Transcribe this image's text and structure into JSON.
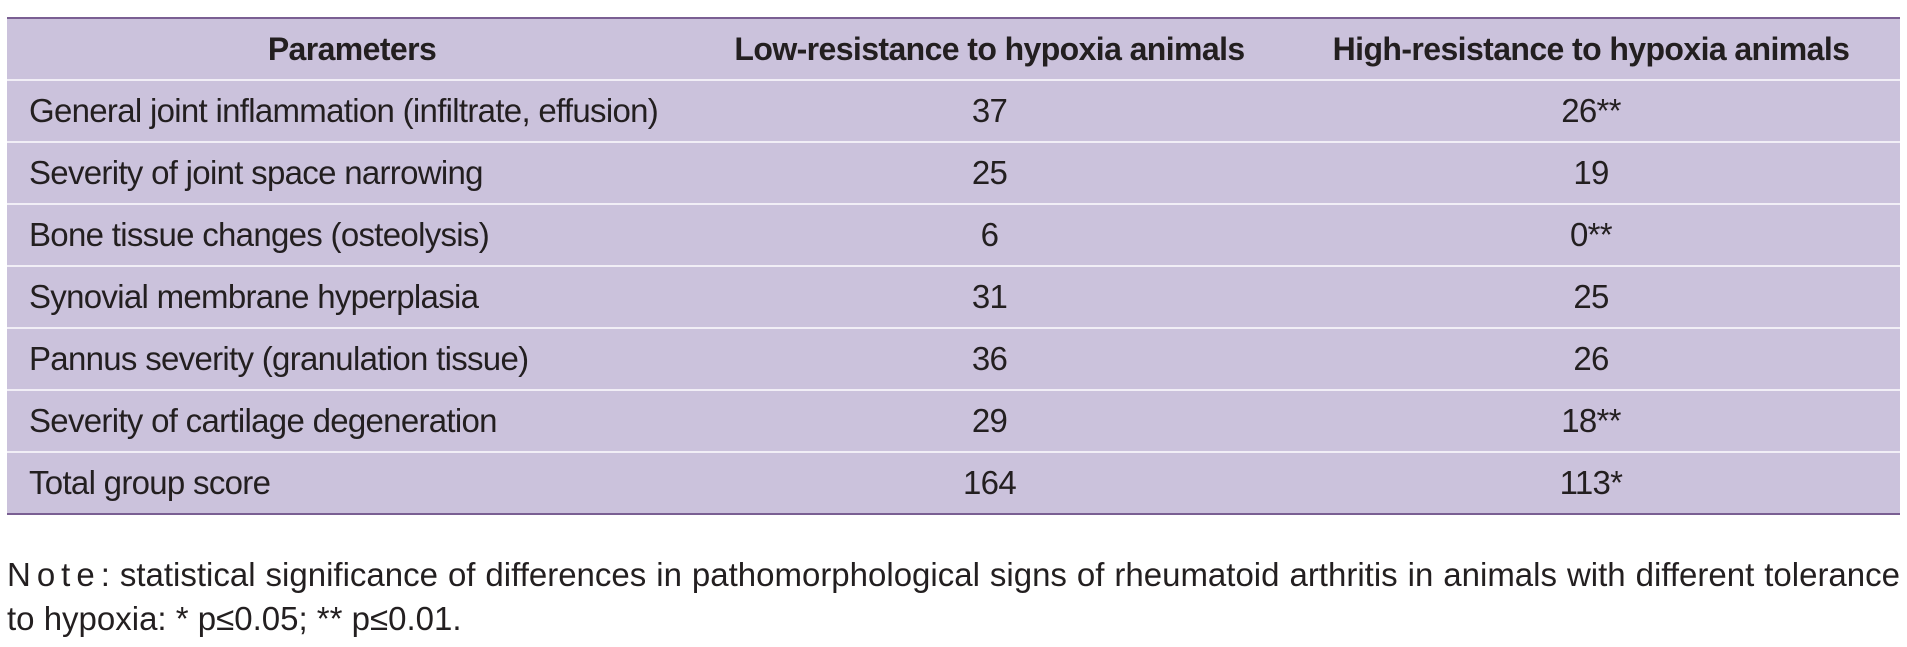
{
  "table": {
    "headers": [
      "Parameters",
      "Low-resistance to hypoxia animals",
      "High-resistance to hypoxia animals"
    ],
    "rows": [
      [
        "General joint inflammation (infiltrate, effusion)",
        "37",
        "26**"
      ],
      [
        "Severity of joint space narrowing",
        "25",
        "19"
      ],
      [
        "Bone tissue changes (osteolysis)",
        "6",
        "0**"
      ],
      [
        "Synovial membrane hyperplasia",
        "31",
        "25"
      ],
      [
        "Pannus severity (granulation tissue)",
        "36",
        "26"
      ],
      [
        "Severity of cartilage degeneration",
        "29",
        "18**"
      ],
      [
        "Total group score",
        "164",
        "113*"
      ]
    ]
  },
  "note": {
    "label": "Note",
    "text": ": statistical significance of differences in pathomorphological signs of rheumatoid arthritis in animals with different tolerance to hypoxia: * p≤0.05; ** p≤0.01."
  },
  "colors": {
    "table_background": "#cbc2dc",
    "rule_color": "#7a5f93",
    "row_divider": "#f1eef6",
    "text": "#231f20"
  }
}
